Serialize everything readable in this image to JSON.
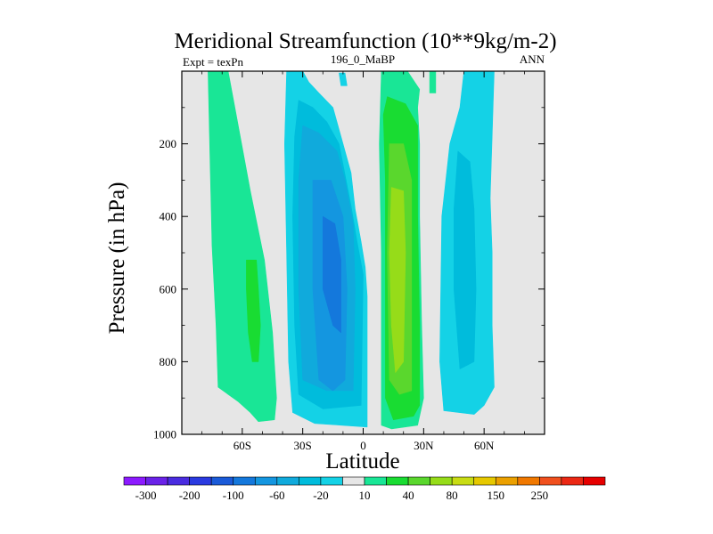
{
  "chart_data": {
    "type": "contour",
    "title": "Meridional Streamfunction (10**9kg/m-2)",
    "subtitle_left": "Expt = texPn",
    "subtitle_center": "196_0_MaBP",
    "subtitle_right": "ANN",
    "xlabel": "Latitude",
    "ylabel": "Pressure (in hPa)",
    "xlim": [
      -90,
      90
    ],
    "ylim": [
      1000,
      0
    ],
    "x_ticks": [
      {
        "value": -60,
        "label": "60S"
      },
      {
        "value": -30,
        "label": "30S"
      },
      {
        "value": 0,
        "label": "0"
      },
      {
        "value": 30,
        "label": "30N"
      },
      {
        "value": 60,
        "label": "60N"
      }
    ],
    "y_ticks": [
      {
        "value": 200,
        "label": "200"
      },
      {
        "value": 400,
        "label": "400"
      },
      {
        "value": 600,
        "label": "600"
      },
      {
        "value": 800,
        "label": "800"
      },
      {
        "value": 1000,
        "label": "1000"
      }
    ],
    "background_color": "#e6e6e6",
    "colorbar": {
      "labels": [
        "-300",
        "-200",
        "-100",
        "-60",
        "-20",
        "10",
        "40",
        "80",
        "150",
        "250"
      ],
      "colors": [
        "#8c1aff",
        "#6a22e8",
        "#4a2ce0",
        "#2a3ae0",
        "#1a5ad8",
        "#1478dc",
        "#1496e0",
        "#10aadc",
        "#00bcdc",
        "#14d2e6",
        "#e6e6e6",
        "#19e696",
        "#19dc32",
        "#5ad72d",
        "#96dc19",
        "#c8dc14",
        "#e6c800",
        "#eba000",
        "#f07800",
        "#f0501e",
        "#eb2814",
        "#e60000"
      ]
    },
    "regions": [
      {
        "name": "sh-ferrel-outer",
        "level": "10",
        "color": "#19e696",
        "points": [
          [
            -77,
            0
          ],
          [
            -67,
            0
          ],
          [
            -61,
            180
          ],
          [
            -56,
            330
          ],
          [
            -49,
            520
          ],
          [
            -45,
            720
          ],
          [
            -43,
            900
          ],
          [
            -44,
            960
          ],
          [
            -52,
            965
          ],
          [
            -56,
            940
          ],
          [
            -62,
            910
          ],
          [
            -72,
            870
          ],
          [
            -73,
            700
          ],
          [
            -75,
            480
          ],
          [
            -76,
            250
          ]
        ]
      },
      {
        "name": "sh-ferrel-core",
        "level": "40",
        "color": "#19dc32",
        "points": [
          [
            -58,
            520
          ],
          [
            -53,
            520
          ],
          [
            -52,
            600
          ],
          [
            -51,
            700
          ],
          [
            -52,
            800
          ],
          [
            -55,
            800
          ],
          [
            -57,
            720
          ],
          [
            -58,
            600
          ]
        ]
      },
      {
        "name": "sh-hadley-outer",
        "level": "-20",
        "color": "#14d2e6",
        "points": [
          [
            -38,
            0
          ],
          [
            -30,
            0
          ],
          [
            -27,
            30
          ],
          [
            -22,
            60
          ],
          [
            -15,
            100
          ],
          [
            -10,
            200
          ],
          [
            -6,
            280
          ],
          [
            -4,
            380
          ],
          [
            -1,
            470
          ],
          [
            1,
            540
          ],
          [
            2,
            620
          ],
          [
            2,
            800
          ],
          [
            2,
            980
          ],
          [
            -24,
            970
          ],
          [
            -35,
            940
          ],
          [
            -37,
            800
          ],
          [
            -38,
            500
          ],
          [
            -39,
            200
          ]
        ]
      },
      {
        "name": "sh-hadley-l1",
        "level": "-60",
        "color": "#00bcdc",
        "points": [
          [
            -32,
            80
          ],
          [
            -25,
            100
          ],
          [
            -18,
            140
          ],
          [
            -12,
            200
          ],
          [
            -6,
            370
          ],
          [
            -3,
            470
          ],
          [
            0,
            560
          ],
          [
            -1,
            920
          ],
          [
            -20,
            930
          ],
          [
            -32,
            890
          ],
          [
            -34,
            700
          ],
          [
            -35,
            400
          ],
          [
            -34,
            180
          ]
        ]
      },
      {
        "name": "sh-hadley-l2",
        "level": "-100",
        "color": "#10aadc",
        "points": [
          [
            -30,
            150
          ],
          [
            -22,
            170
          ],
          [
            -13,
            220
          ],
          [
            -9,
            300
          ],
          [
            -5,
            420
          ],
          [
            -4,
            600
          ],
          [
            -5,
            880
          ],
          [
            -18,
            880
          ],
          [
            -30,
            850
          ],
          [
            -32,
            600
          ],
          [
            -32,
            300
          ]
        ]
      },
      {
        "name": "sh-hadley-l3",
        "level": "-200",
        "color": "#1496e0",
        "points": [
          [
            -25,
            300
          ],
          [
            -16,
            300
          ],
          [
            -10,
            400
          ],
          [
            -8,
            600
          ],
          [
            -9,
            850
          ],
          [
            -15,
            880
          ],
          [
            -22,
            850
          ],
          [
            -25,
            600
          ]
        ]
      },
      {
        "name": "sh-hadley-core",
        "level": "-300",
        "color": "#1478dc",
        "points": [
          [
            -20,
            400
          ],
          [
            -14,
            420
          ],
          [
            -11,
            520
          ],
          [
            -11,
            720
          ],
          [
            -15,
            700
          ],
          [
            -20,
            600
          ]
        ]
      },
      {
        "name": "sh-isolated-patch",
        "level": "-20",
        "color": "#14d2e6",
        "points": [
          [
            -12,
            5
          ],
          [
            -9,
            5
          ],
          [
            -8,
            40
          ],
          [
            -11,
            40
          ]
        ]
      },
      {
        "name": "nh-hadley-outer",
        "level": "10",
        "color": "#19e696",
        "points": [
          [
            9,
            0
          ],
          [
            22,
            0
          ],
          [
            28,
            50
          ],
          [
            27,
            100
          ],
          [
            28,
            200
          ],
          [
            28,
            400
          ],
          [
            29,
            700
          ],
          [
            30,
            900
          ],
          [
            27,
            975
          ],
          [
            14,
            985
          ],
          [
            9,
            975
          ],
          [
            9,
            800
          ],
          [
            9,
            500
          ],
          [
            8,
            200
          ]
        ]
      },
      {
        "name": "nh-hadley-l1",
        "level": "40",
        "color": "#19dc32",
        "points": [
          [
            12,
            70
          ],
          [
            21,
            90
          ],
          [
            27,
            150
          ],
          [
            27,
            400
          ],
          [
            28,
            700
          ],
          [
            28,
            920
          ],
          [
            25,
            950
          ],
          [
            15,
            960
          ],
          [
            11,
            900
          ],
          [
            11,
            600
          ],
          [
            11,
            300
          ],
          [
            10,
            120
          ]
        ]
      },
      {
        "name": "nh-hadley-l2",
        "level": "80",
        "color": "#5ad72d",
        "points": [
          [
            13,
            200
          ],
          [
            20,
            200
          ],
          [
            24,
            300
          ],
          [
            24,
            600
          ],
          [
            24,
            880
          ],
          [
            18,
            890
          ],
          [
            13,
            850
          ],
          [
            12,
            500
          ]
        ]
      },
      {
        "name": "nh-hadley-core",
        "level": "150",
        "color": "#96dc19",
        "points": [
          [
            14,
            320
          ],
          [
            20,
            330
          ],
          [
            21,
            500
          ],
          [
            20,
            800
          ],
          [
            16,
            830
          ],
          [
            14,
            700
          ],
          [
            13,
            500
          ]
        ]
      },
      {
        "name": "nh-isolated-patch",
        "level": "10",
        "color": "#19e696",
        "points": [
          [
            33,
            0
          ],
          [
            36,
            0
          ],
          [
            36,
            60
          ],
          [
            33,
            60
          ]
        ]
      },
      {
        "name": "nh-ferrel-outer",
        "level": "-20",
        "color": "#14d2e6",
        "points": [
          [
            50,
            0
          ],
          [
            65,
            0
          ],
          [
            64,
            180
          ],
          [
            63,
            350
          ],
          [
            64,
            500
          ],
          [
            64,
            700
          ],
          [
            65,
            870
          ],
          [
            60,
            920
          ],
          [
            55,
            945
          ],
          [
            40,
            935
          ],
          [
            38,
            800
          ],
          [
            39,
            400
          ],
          [
            43,
            200
          ],
          [
            48,
            100
          ]
        ]
      },
      {
        "name": "nh-ferrel-core",
        "level": "-60",
        "color": "#00bcdc",
        "points": [
          [
            47,
            220
          ],
          [
            53,
            250
          ],
          [
            55,
            380
          ],
          [
            56,
            600
          ],
          [
            55,
            800
          ],
          [
            48,
            820
          ],
          [
            45,
            600
          ],
          [
            45,
            380
          ]
        ]
      }
    ]
  }
}
